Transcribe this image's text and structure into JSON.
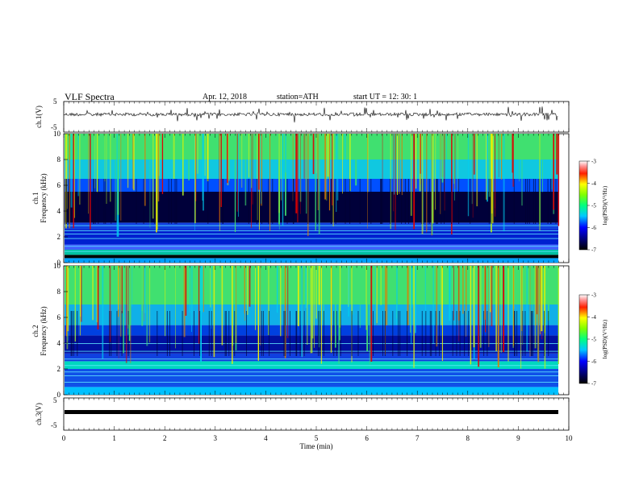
{
  "header": {
    "title": "VLF  Spectra",
    "date": "Apr. 12, 2018",
    "station": "station=ATH",
    "start": "start  UT  =    12: 30: 1"
  },
  "chart_data": [
    {
      "type": "line",
      "name": "ch1-waveform",
      "ylabel": "ch.1(V)",
      "ylim": [
        -5,
        5
      ],
      "yticks": [
        "5",
        "-5"
      ],
      "xlim": [
        0,
        10
      ]
    },
    {
      "type": "heatmap",
      "name": "ch1-spectrogram",
      "ylabel": "ch.1\nFrequency  (kHz)",
      "ylabel_top": "ch.1",
      "ylabel_bottom": "Frequency  (kHz)",
      "ylim": [
        0,
        10
      ],
      "yticks": [
        "0",
        "2",
        "4",
        "6",
        "8",
        "10"
      ],
      "xlim": [
        0,
        10
      ],
      "colorbar": {
        "label": "log(PSD)(V²/Hz)",
        "range": [
          -7,
          -3
        ],
        "ticks": [
          "-3",
          "-4",
          "-5",
          "-6",
          "-7"
        ]
      }
    },
    {
      "type": "heatmap",
      "name": "ch2-spectrogram",
      "ylabel_top": "ch.2",
      "ylabel_bottom": "Frequency  (kHz)",
      "ylim": [
        0,
        10
      ],
      "yticks": [
        "0",
        "2",
        "4",
        "6",
        "8",
        "10"
      ],
      "xlim": [
        0,
        10
      ],
      "colorbar": {
        "label": "log(PSD)(V²/Hz)",
        "range": [
          -7,
          -3
        ],
        "ticks": [
          "-3",
          "-4",
          "-5",
          "-6",
          "-7"
        ]
      }
    },
    {
      "type": "line",
      "name": "ch3-waveform",
      "ylabel": "ch.3(V)",
      "ylim": [
        -5,
        5
      ],
      "yticks": [
        "5",
        "-5"
      ],
      "xlim": [
        0,
        10
      ],
      "xlabel": "Time  (min)",
      "xticks": [
        "0",
        "1",
        "2",
        "3",
        "4",
        "5",
        "6",
        "7",
        "8",
        "9",
        "10"
      ]
    }
  ],
  "colors": {
    "dark": "#00003a",
    "blue": "#0000d8",
    "cyan": "#00e0f0",
    "green": "#40e060",
    "yellow": "#f0f000",
    "red": "#e00000"
  }
}
